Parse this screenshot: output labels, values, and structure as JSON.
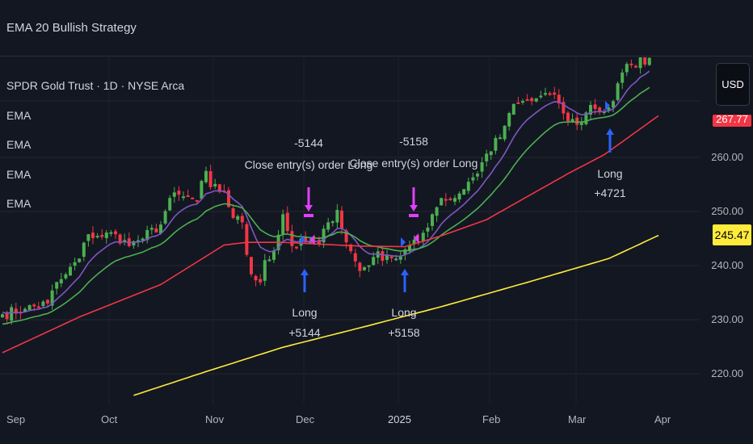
{
  "header": {
    "title": "EMA 20 Bullish Strategy"
  },
  "legend": {
    "symbol": "SPDR Gold Trust · 1D · NYSE Arca",
    "indicators": [
      "EMA",
      "EMA",
      "EMA",
      "EMA"
    ]
  },
  "price_axis": {
    "currency_button": "USD",
    "ticks": [
      "260.00",
      "250.00",
      "240.00",
      "230.00",
      "220.00"
    ],
    "last_price": "245.47",
    "last_price_color": "#ffeb3b",
    "red_tag": "267.77",
    "red_tag_color": "#f23645"
  },
  "time_axis": {
    "ticks": [
      "Sep",
      "Oct",
      "Nov",
      "Dec",
      "2025",
      "Feb",
      "Mar",
      "Apr"
    ]
  },
  "chart_data": {
    "type": "candlestick",
    "title": "SPDR Gold Trust · 1D · NYSE Arca",
    "ylim": [
      213,
      282
    ],
    "grid": true,
    "colors": {
      "up": "#4caf50",
      "down": "#f23645",
      "ema_fast": "#7e57c2",
      "ema_mid": "#4caf50",
      "ema_slow": "#f23645",
      "ema_long": "#ffeb3b",
      "long_signal": "#2962ff",
      "close_signal": "#e040fb"
    },
    "closes": [
      [
        "2024-08-28",
        231.0
      ],
      [
        "2024-09-04",
        232.0
      ],
      [
        "2024-09-11",
        233.0
      ],
      [
        "2024-09-12",
        235.4
      ],
      [
        "2024-09-17",
        238.4
      ],
      [
        "2024-09-20",
        241.3
      ],
      [
        "2024-09-24",
        245.8
      ],
      [
        "2024-09-26",
        245.5
      ],
      [
        "2024-10-02",
        245.8
      ],
      [
        "2024-10-07",
        243.6
      ],
      [
        "2024-10-08",
        244.5
      ],
      [
        "2024-10-10",
        245.0
      ],
      [
        "2024-10-16",
        247.6
      ],
      [
        "2024-10-18",
        252.5
      ],
      [
        "2024-10-23",
        252.8
      ],
      [
        "2024-10-28",
        252.0
      ],
      [
        "2024-10-30",
        257.5
      ],
      [
        "2024-10-31",
        254.5
      ],
      [
        "2024-11-05",
        253.6
      ],
      [
        "2024-11-07",
        248.8
      ],
      [
        "2024-11-11",
        248.0
      ],
      [
        "2024-11-12",
        242.0
      ],
      [
        "2024-11-13",
        238.4
      ],
      [
        "2024-11-15",
        236.9
      ],
      [
        "2024-11-18",
        241.0
      ],
      [
        "2024-11-20",
        242.8
      ],
      [
        "2024-11-22",
        249.5
      ],
      [
        "2024-11-26",
        243.6
      ],
      [
        "2024-11-29",
        244.3
      ],
      [
        "2024-12-04",
        244.0
      ],
      [
        "2024-12-06",
        248.0
      ],
      [
        "2024-12-10",
        250.3
      ],
      [
        "2024-12-12",
        244.3
      ],
      [
        "2024-12-17",
        239.0
      ],
      [
        "2024-12-20",
        241.6
      ],
      [
        "2024-12-25",
        242.0
      ],
      [
        "2024-12-27",
        241.3
      ],
      [
        "2024-12-31",
        243.0
      ],
      [
        "2025-01-03",
        244.3
      ],
      [
        "2025-01-08",
        249.5
      ],
      [
        "2025-01-10",
        252.5
      ],
      [
        "2025-01-15",
        252.5
      ],
      [
        "2025-01-20",
        255.5
      ],
      [
        "2025-01-22",
        257.0
      ],
      [
        "2025-01-24",
        260.7
      ],
      [
        "2025-01-29",
        263.7
      ],
      [
        "2025-01-31",
        268.2
      ],
      [
        "2025-02-04",
        270.0
      ],
      [
        "2025-02-07",
        270.4
      ],
      [
        "2025-02-12",
        271.9
      ],
      [
        "2025-02-17",
        270.0
      ],
      [
        "2025-02-19",
        266.7
      ],
      [
        "2025-02-24",
        266.5
      ],
      [
        "2025-02-26",
        269.7
      ],
      [
        "2025-03-03",
        268.5
      ],
      [
        "2025-03-05",
        270.4
      ],
      [
        "2025-03-07",
        275.7
      ],
      [
        "2025-03-11",
        277.2
      ],
      [
        "2025-03-17",
        278.4
      ]
    ],
    "ema_slow": [
      [
        "2024-08-28",
        223.9
      ],
      [
        "2024-09-20",
        230.5
      ],
      [
        "2024-10-16",
        236.5
      ],
      [
        "2024-11-05",
        243.8
      ],
      [
        "2024-11-12",
        244.3
      ],
      [
        "2024-11-22",
        244.3
      ],
      [
        "2024-12-17",
        243.6
      ],
      [
        "2024-12-31",
        243.5
      ],
      [
        "2025-01-10",
        245.5
      ],
      [
        "2025-01-24",
        248.5
      ],
      [
        "2025-02-19",
        257.0
      ],
      [
        "2025-03-03",
        260.5
      ],
      [
        "2025-03-17",
        266.5
      ]
    ],
    "ema_long": [
      [
        "2024-10-08",
        216.0
      ],
      [
        "2024-10-30",
        220.4
      ],
      [
        "2024-11-22",
        224.9
      ],
      [
        "2024-12-18",
        228.7
      ],
      [
        "2025-01-10",
        232.4
      ],
      [
        "2025-02-06",
        236.9
      ],
      [
        "2025-03-04",
        241.3
      ],
      [
        "2025-03-17",
        244.8
      ]
    ],
    "signals": [
      {
        "type": "long",
        "label": "Long",
        "qty": "+5144"
      },
      {
        "type": "close",
        "label": "Close entry(s) order Long",
        "qty": "-5144"
      },
      {
        "type": "long",
        "label": "Long",
        "qty": "+5158"
      },
      {
        "type": "close",
        "label": "Close entry(s) order Long",
        "qty": "-5158"
      },
      {
        "type": "long",
        "label": "Long",
        "qty": "+4721"
      }
    ]
  }
}
